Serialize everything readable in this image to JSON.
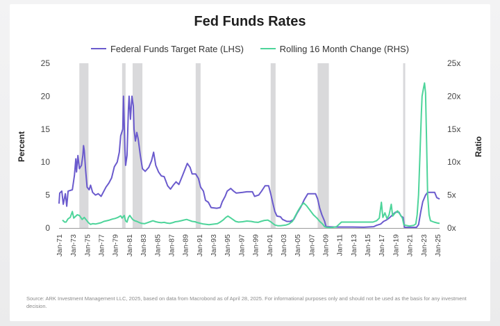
{
  "chart_data": {
    "type": "line",
    "title": "Fed Funds Rates",
    "left_axis_label": "Percent",
    "right_axis_label": "Ratio",
    "left_ylim": [
      0,
      25
    ],
    "right_ylim": [
      0,
      25
    ],
    "left_ticks": [
      "0",
      "5",
      "10",
      "15",
      "20",
      "25"
    ],
    "right_ticks": [
      "0x",
      "5x",
      "10x",
      "15x",
      "20x",
      "25x"
    ],
    "x_range": [
      1971,
      2025.3
    ],
    "x_tick_labels": [
      "Jan-71",
      "Jan-73",
      "Jan-75",
      "Jan-77",
      "Jan-79",
      "Jan-81",
      "Jan-83",
      "Jan-85",
      "Jan-87",
      "Jan-89",
      "Jan-91",
      "Jan-93",
      "Jan-95",
      "Jan-97",
      "Jan-99",
      "Jan-01",
      "Jan-03",
      "Jan-05",
      "Jan-07",
      "Jan-09",
      "Jan-11",
      "Jan-13",
      "Jan-15",
      "Jan-17",
      "Jan-19",
      "Jan-21",
      "Jan-23",
      "Jan-25"
    ],
    "grid": false,
    "legend_position": "top-center",
    "recessions": [
      [
        1973.9,
        1975.2
      ],
      [
        1980.0,
        1980.5
      ],
      [
        1981.5,
        1982.9
      ],
      [
        1990.5,
        1991.2
      ],
      [
        2001.2,
        2001.9
      ],
      [
        2007.9,
        2009.5
      ],
      [
        2020.1,
        2020.4
      ]
    ],
    "series": [
      {
        "name": "Federal Funds Target Rate (LHS)",
        "color": "#6a5acd",
        "axis": "left",
        "points": [
          [
            1971.0,
            3.7
          ],
          [
            1971.1,
            5.3
          ],
          [
            1971.4,
            5.6
          ],
          [
            1971.6,
            3.6
          ],
          [
            1971.9,
            5.2
          ],
          [
            1972.1,
            3.3
          ],
          [
            1972.3,
            5.6
          ],
          [
            1972.9,
            5.8
          ],
          [
            1973.2,
            8.0
          ],
          [
            1973.4,
            10.5
          ],
          [
            1973.5,
            8.5
          ],
          [
            1973.7,
            11.0
          ],
          [
            1973.9,
            9.0
          ],
          [
            1974.2,
            9.5
          ],
          [
            1974.4,
            11.0
          ],
          [
            1974.5,
            12.5
          ],
          [
            1974.6,
            11.8
          ],
          [
            1974.8,
            8.8
          ],
          [
            1975.0,
            6.2
          ],
          [
            1975.3,
            5.8
          ],
          [
            1975.5,
            6.5
          ],
          [
            1975.8,
            5.4
          ],
          [
            1976.2,
            5.0
          ],
          [
            1976.6,
            5.2
          ],
          [
            1977.0,
            4.8
          ],
          [
            1977.3,
            5.4
          ],
          [
            1977.7,
            6.2
          ],
          [
            1978.1,
            6.8
          ],
          [
            1978.5,
            7.6
          ],
          [
            1978.9,
            9.3
          ],
          [
            1979.3,
            10.0
          ],
          [
            1979.6,
            11.5
          ],
          [
            1979.8,
            14.0
          ],
          [
            1980.1,
            15.0
          ],
          [
            1980.2,
            20.0
          ],
          [
            1980.4,
            12.0
          ],
          [
            1980.5,
            9.5
          ],
          [
            1980.7,
            11.0
          ],
          [
            1980.9,
            18.0
          ],
          [
            1981.0,
            20.0
          ],
          [
            1981.2,
            16.5
          ],
          [
            1981.4,
            20.0
          ],
          [
            1981.6,
            18.5
          ],
          [
            1981.7,
            15.0
          ],
          [
            1981.9,
            13.2
          ],
          [
            1982.1,
            14.5
          ],
          [
            1982.3,
            13.5
          ],
          [
            1982.6,
            11.0
          ],
          [
            1982.9,
            9.0
          ],
          [
            1983.3,
            8.6
          ],
          [
            1983.8,
            9.2
          ],
          [
            1984.2,
            10.2
          ],
          [
            1984.5,
            11.5
          ],
          [
            1984.8,
            9.5
          ],
          [
            1985.2,
            8.5
          ],
          [
            1985.6,
            7.9
          ],
          [
            1986.0,
            7.8
          ],
          [
            1986.5,
            6.4
          ],
          [
            1986.9,
            5.9
          ],
          [
            1987.3,
            6.5
          ],
          [
            1987.7,
            7.0
          ],
          [
            1988.1,
            6.6
          ],
          [
            1988.6,
            7.9
          ],
          [
            1989.0,
            9.0
          ],
          [
            1989.3,
            9.8
          ],
          [
            1989.7,
            9.2
          ],
          [
            1990.0,
            8.2
          ],
          [
            1990.5,
            8.2
          ],
          [
            1990.9,
            7.5
          ],
          [
            1991.2,
            6.2
          ],
          [
            1991.6,
            5.6
          ],
          [
            1991.9,
            4.2
          ],
          [
            1992.3,
            3.9
          ],
          [
            1992.7,
            3.1
          ],
          [
            1993.5,
            3.0
          ],
          [
            1994.0,
            3.1
          ],
          [
            1994.3,
            4.0
          ],
          [
            1994.7,
            4.8
          ],
          [
            1995.0,
            5.6
          ],
          [
            1995.5,
            6.0
          ],
          [
            1995.9,
            5.6
          ],
          [
            1996.3,
            5.3
          ],
          [
            1997.2,
            5.4
          ],
          [
            1997.8,
            5.5
          ],
          [
            1998.6,
            5.5
          ],
          [
            1998.9,
            4.8
          ],
          [
            1999.5,
            5.0
          ],
          [
            1999.9,
            5.6
          ],
          [
            2000.4,
            6.4
          ],
          [
            2000.9,
            6.4
          ],
          [
            2001.2,
            5.2
          ],
          [
            2001.5,
            3.8
          ],
          [
            2001.8,
            2.5
          ],
          [
            2002.1,
            1.8
          ],
          [
            2002.6,
            1.7
          ],
          [
            2002.9,
            1.3
          ],
          [
            2003.5,
            1.0
          ],
          [
            2004.0,
            1.0
          ],
          [
            2004.5,
            1.3
          ],
          [
            2005.0,
            2.3
          ],
          [
            2005.5,
            3.2
          ],
          [
            2006.0,
            4.3
          ],
          [
            2006.5,
            5.2
          ],
          [
            2007.6,
            5.2
          ],
          [
            2007.9,
            4.4
          ],
          [
            2008.2,
            3.0
          ],
          [
            2008.5,
            2.0
          ],
          [
            2008.9,
            1.0
          ],
          [
            2009.1,
            0.2
          ],
          [
            2010.5,
            0.15
          ],
          [
            2012.5,
            0.15
          ],
          [
            2014.5,
            0.12
          ],
          [
            2015.9,
            0.2
          ],
          [
            2016.3,
            0.4
          ],
          [
            2016.9,
            0.6
          ],
          [
            2017.3,
            1.0
          ],
          [
            2017.7,
            1.2
          ],
          [
            2018.1,
            1.5
          ],
          [
            2018.6,
            2.0
          ],
          [
            2019.0,
            2.4
          ],
          [
            2019.5,
            2.4
          ],
          [
            2019.8,
            1.8
          ],
          [
            2020.1,
            1.6
          ],
          [
            2020.3,
            0.1
          ],
          [
            2021.5,
            0.1
          ],
          [
            2022.0,
            0.1
          ],
          [
            2022.3,
            0.5
          ],
          [
            2022.6,
            2.4
          ],
          [
            2022.9,
            4.0
          ],
          [
            2023.3,
            5.0
          ],
          [
            2023.6,
            5.4
          ],
          [
            2024.0,
            5.4
          ],
          [
            2024.6,
            5.4
          ],
          [
            2024.9,
            4.6
          ],
          [
            2025.3,
            4.4
          ]
        ]
      },
      {
        "name": "Rolling 16 Month Change (RHS)",
        "color": "#4dd49a",
        "axis": "right",
        "points": [
          [
            1971.5,
            1.2
          ],
          [
            1971.8,
            0.9
          ],
          [
            1972.0,
            0.9
          ],
          [
            1972.3,
            1.4
          ],
          [
            1972.6,
            1.6
          ],
          [
            1972.9,
            2.5
          ],
          [
            1973.1,
            1.5
          ],
          [
            1973.3,
            1.7
          ],
          [
            1973.6,
            2.0
          ],
          [
            1973.9,
            1.9
          ],
          [
            1974.1,
            1.6
          ],
          [
            1974.3,
            1.3
          ],
          [
            1974.6,
            1.6
          ],
          [
            1974.9,
            1.2
          ],
          [
            1975.2,
            0.8
          ],
          [
            1975.5,
            0.55
          ],
          [
            1975.8,
            0.65
          ],
          [
            1976.2,
            0.6
          ],
          [
            1976.6,
            0.7
          ],
          [
            1977.0,
            0.8
          ],
          [
            1977.4,
            1.0
          ],
          [
            1977.8,
            1.1
          ],
          [
            1978.2,
            1.2
          ],
          [
            1978.6,
            1.35
          ],
          [
            1979.0,
            1.45
          ],
          [
            1979.4,
            1.6
          ],
          [
            1979.8,
            1.85
          ],
          [
            1980.0,
            1.5
          ],
          [
            1980.3,
            1.9
          ],
          [
            1980.5,
            1.1
          ],
          [
            1980.7,
            0.9
          ],
          [
            1980.9,
            1.6
          ],
          [
            1981.1,
            1.9
          ],
          [
            1981.3,
            1.6
          ],
          [
            1981.5,
            1.3
          ],
          [
            1981.8,
            1.1
          ],
          [
            1982.1,
            1.0
          ],
          [
            1982.4,
            0.85
          ],
          [
            1982.8,
            0.7
          ],
          [
            1983.2,
            0.65
          ],
          [
            1983.6,
            0.8
          ],
          [
            1984.0,
            0.95
          ],
          [
            1984.4,
            1.1
          ],
          [
            1984.8,
            0.95
          ],
          [
            1985.2,
            0.85
          ],
          [
            1985.6,
            0.8
          ],
          [
            1986.0,
            0.85
          ],
          [
            1986.4,
            0.75
          ],
          [
            1986.8,
            0.7
          ],
          [
            1987.2,
            0.8
          ],
          [
            1987.6,
            0.95
          ],
          [
            1988.0,
            1.0
          ],
          [
            1988.4,
            1.1
          ],
          [
            1988.8,
            1.2
          ],
          [
            1989.2,
            1.3
          ],
          [
            1989.6,
            1.15
          ],
          [
            1990.0,
            1.0
          ],
          [
            1990.4,
            0.95
          ],
          [
            1990.8,
            0.8
          ],
          [
            1991.2,
            0.7
          ],
          [
            1991.6,
            0.6
          ],
          [
            1992.0,
            0.55
          ],
          [
            1992.4,
            0.5
          ],
          [
            1992.8,
            0.55
          ],
          [
            1993.2,
            0.6
          ],
          [
            1993.6,
            0.65
          ],
          [
            1994.0,
            0.9
          ],
          [
            1994.4,
            1.2
          ],
          [
            1994.8,
            1.6
          ],
          [
            1995.1,
            1.8
          ],
          [
            1995.4,
            1.6
          ],
          [
            1995.8,
            1.3
          ],
          [
            1996.2,
            1.0
          ],
          [
            1996.6,
            0.9
          ],
          [
            1997.2,
            0.95
          ],
          [
            1997.8,
            1.05
          ],
          [
            1998.4,
            1.0
          ],
          [
            1998.9,
            0.9
          ],
          [
            1999.4,
            0.85
          ],
          [
            1999.8,
            1.0
          ],
          [
            2000.3,
            1.15
          ],
          [
            2000.8,
            1.2
          ],
          [
            2001.2,
            0.95
          ],
          [
            2001.5,
            0.7
          ],
          [
            2001.8,
            0.45
          ],
          [
            2002.2,
            0.35
          ],
          [
            2002.6,
            0.35
          ],
          [
            2003.0,
            0.4
          ],
          [
            2003.4,
            0.45
          ],
          [
            2003.8,
            0.6
          ],
          [
            2004.3,
            1.0
          ],
          [
            2004.7,
            1.8
          ],
          [
            2005.1,
            2.6
          ],
          [
            2005.5,
            3.3
          ],
          [
            2005.9,
            3.8
          ],
          [
            2006.3,
            3.4
          ],
          [
            2006.8,
            2.7
          ],
          [
            2007.3,
            2.0
          ],
          [
            2007.8,
            1.5
          ],
          [
            2008.2,
            1.0
          ],
          [
            2008.6,
            0.6
          ],
          [
            2008.9,
            0.2
          ],
          [
            2009.2,
            0.1
          ],
          [
            2009.6,
            0.05
          ],
          [
            2010.0,
            0.1
          ],
          [
            2010.6,
            0.2
          ],
          [
            2011.0,
            0.6
          ],
          [
            2011.3,
            0.9
          ],
          [
            2012.0,
            0.9
          ],
          [
            2013.0,
            0.9
          ],
          [
            2014.0,
            0.9
          ],
          [
            2015.0,
            0.9
          ],
          [
            2015.8,
            0.9
          ],
          [
            2016.3,
            1.1
          ],
          [
            2016.7,
            1.5
          ],
          [
            2017.0,
            3.9
          ],
          [
            2017.2,
            1.6
          ],
          [
            2017.5,
            2.3
          ],
          [
            2017.8,
            1.4
          ],
          [
            2018.1,
            2.0
          ],
          [
            2018.4,
            3.6
          ],
          [
            2018.6,
            1.8
          ],
          [
            2018.9,
            2.2
          ],
          [
            2019.3,
            2.6
          ],
          [
            2019.7,
            2.0
          ],
          [
            2020.0,
            1.5
          ],
          [
            2020.2,
            0.5
          ],
          [
            2020.5,
            0.4
          ],
          [
            2021.0,
            0.3
          ],
          [
            2021.6,
            0.4
          ],
          [
            2021.9,
            0.6
          ],
          [
            2022.1,
            2.0
          ],
          [
            2022.3,
            5.0
          ],
          [
            2022.5,
            11.0
          ],
          [
            2022.7,
            17.5
          ],
          [
            2022.8,
            20.0
          ],
          [
            2023.0,
            21.2
          ],
          [
            2023.15,
            22.0
          ],
          [
            2023.3,
            20.5
          ],
          [
            2023.45,
            13.0
          ],
          [
            2023.6,
            5.0
          ],
          [
            2023.8,
            2.0
          ],
          [
            2024.0,
            1.1
          ],
          [
            2024.5,
            0.9
          ],
          [
            2025.0,
            0.75
          ],
          [
            2025.3,
            0.7
          ]
        ]
      }
    ]
  },
  "source_text": "Source: ARK Investment Management LLC, 2025, based on data from Macrobond as of April 28, 2025. For informational purposes only and should not be used as the basis for any investment decision.",
  "colors": {
    "recession_shade": "#d9d9db",
    "axis_text": "#444444"
  }
}
